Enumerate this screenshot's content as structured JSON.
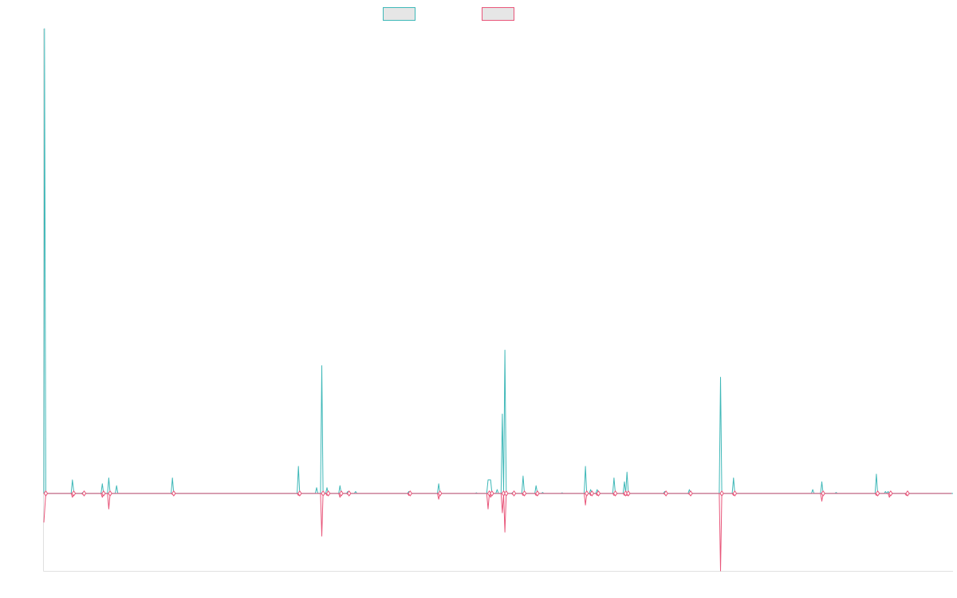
{
  "chart_data": {
    "type": "line",
    "title": "",
    "xlabel": "",
    "ylabel": "",
    "grid": false,
    "legend_position": "top-center",
    "xlim": [
      0,
      700
    ],
    "ylim": [
      -40,
      240
    ],
    "baseline": 0,
    "series": [
      {
        "color": "#3fb8b8",
        "marker": "none",
        "points": [
          [
            0,
            0
          ],
          [
            0.5,
            240
          ],
          [
            1.5,
            0
          ],
          [
            21,
            0
          ],
          [
            22,
            7
          ],
          [
            23,
            1
          ],
          [
            24,
            0
          ],
          [
            29,
            0
          ],
          [
            30,
            0.5
          ],
          [
            31,
            0
          ],
          [
            44,
            0
          ],
          [
            45,
            5
          ],
          [
            46,
            0
          ],
          [
            49,
            0
          ],
          [
            50,
            8
          ],
          [
            51,
            0
          ],
          [
            55,
            0
          ],
          [
            56,
            4
          ],
          [
            57,
            0
          ],
          [
            98,
            0
          ],
          [
            99,
            8
          ],
          [
            100,
            0
          ],
          [
            195,
            0
          ],
          [
            196,
            14
          ],
          [
            197,
            0
          ],
          [
            209,
            0
          ],
          [
            210,
            3
          ],
          [
            211,
            0
          ],
          [
            213,
            0
          ],
          [
            214,
            66
          ],
          [
            215,
            0
          ],
          [
            217,
            0
          ],
          [
            218,
            3
          ],
          [
            219,
            0
          ],
          [
            227,
            0
          ],
          [
            228,
            4
          ],
          [
            229,
            0
          ],
          [
            233,
            0
          ],
          [
            234,
            1
          ],
          [
            235,
            0
          ],
          [
            239,
            0
          ],
          [
            240,
            1
          ],
          [
            241,
            0
          ],
          [
            280,
            0
          ],
          [
            281,
            1
          ],
          [
            282,
            0
          ],
          [
            303,
            0
          ],
          [
            304,
            5
          ],
          [
            305,
            0
          ],
          [
            332,
            0
          ],
          [
            333,
            0.3
          ],
          [
            334,
            0
          ],
          [
            341,
            0
          ],
          [
            342,
            7
          ],
          [
            344,
            7
          ],
          [
            345,
            0
          ],
          [
            348,
            0
          ],
          [
            349,
            2
          ],
          [
            350,
            0
          ],
          [
            352,
            0
          ],
          [
            353,
            41
          ],
          [
            354,
            0
          ],
          [
            355,
            74
          ],
          [
            356,
            0
          ],
          [
            360,
            0
          ],
          [
            361,
            0.5
          ],
          [
            362,
            0
          ],
          [
            368,
            0
          ],
          [
            369,
            9
          ],
          [
            370,
            0
          ],
          [
            378,
            0
          ],
          [
            379,
            4
          ],
          [
            380,
            0
          ],
          [
            383,
            0
          ],
          [
            384,
            0.5
          ],
          [
            385,
            0
          ],
          [
            398,
            0
          ],
          [
            399,
            0.3
          ],
          [
            400,
            0
          ],
          [
            416,
            0
          ],
          [
            417,
            14
          ],
          [
            418,
            0
          ],
          [
            420,
            0
          ],
          [
            421,
            2
          ],
          [
            422,
            0
          ],
          [
            425,
            0
          ],
          [
            426,
            2
          ],
          [
            427,
            0
          ],
          [
            438,
            0
          ],
          [
            439,
            8
          ],
          [
            440,
            0
          ],
          [
            446,
            0
          ],
          [
            447,
            6
          ],
          [
            448,
            0
          ],
          [
            449,
            11
          ],
          [
            450,
            0
          ],
          [
            477,
            0
          ],
          [
            478,
            1
          ],
          [
            479,
            0
          ],
          [
            496,
            0
          ],
          [
            497,
            2
          ],
          [
            498,
            0
          ],
          [
            520,
            0
          ],
          [
            521,
            60
          ],
          [
            522,
            0
          ],
          [
            530,
            0
          ],
          [
            531,
            8
          ],
          [
            532,
            0
          ],
          [
            591,
            0
          ],
          [
            592,
            2
          ],
          [
            593,
            0
          ],
          [
            598,
            0
          ],
          [
            599,
            6
          ],
          [
            600,
            0
          ],
          [
            609,
            0
          ],
          [
            610,
            0.5
          ],
          [
            611,
            0
          ],
          [
            640,
            0
          ],
          [
            641,
            10
          ],
          [
            642,
            0
          ],
          [
            647,
            0
          ],
          [
            648,
            1
          ],
          [
            649,
            0
          ],
          [
            650,
            1
          ],
          [
            651,
            0
          ],
          [
            699,
            0
          ]
        ]
      },
      {
        "color": "#e8567a",
        "marker": "diamond",
        "points": [
          [
            0,
            -15
          ],
          [
            1.5,
            0
          ],
          [
            21,
            0
          ],
          [
            22,
            -2
          ],
          [
            23,
            0
          ],
          [
            29,
            0
          ],
          [
            30,
            -0.5
          ],
          [
            31,
            0
          ],
          [
            44,
            0
          ],
          [
            45,
            -2
          ],
          [
            46,
            0
          ],
          [
            49,
            0
          ],
          [
            50,
            -8
          ],
          [
            51,
            0
          ],
          [
            98,
            0
          ],
          [
            99,
            -0.5
          ],
          [
            100,
            0
          ],
          [
            195,
            0
          ],
          [
            196,
            -1
          ],
          [
            197,
            0
          ],
          [
            213,
            0
          ],
          [
            214,
            -22
          ],
          [
            215,
            0
          ],
          [
            217,
            0
          ],
          [
            218,
            -1
          ],
          [
            219,
            0
          ],
          [
            227,
            0
          ],
          [
            228,
            -2
          ],
          [
            229,
            0
          ],
          [
            233,
            0
          ],
          [
            234,
            -0.5
          ],
          [
            235,
            0
          ],
          [
            280,
            0
          ],
          [
            281,
            -1
          ],
          [
            282,
            0
          ],
          [
            303,
            0
          ],
          [
            304,
            -3
          ],
          [
            305,
            0
          ],
          [
            341,
            0
          ],
          [
            342,
            -8
          ],
          [
            343,
            0
          ],
          [
            344,
            -2
          ],
          [
            345,
            0
          ],
          [
            352,
            0
          ],
          [
            353,
            -10
          ],
          [
            354,
            0
          ],
          [
            355,
            -20
          ],
          [
            356,
            0
          ],
          [
            360,
            0
          ],
          [
            361,
            -0.5
          ],
          [
            362,
            0
          ],
          [
            368,
            0
          ],
          [
            369,
            -1
          ],
          [
            370,
            0
          ],
          [
            378,
            0
          ],
          [
            379,
            -1
          ],
          [
            380,
            0
          ],
          [
            416,
            0
          ],
          [
            417,
            -6
          ],
          [
            418,
            0
          ],
          [
            420,
            0
          ],
          [
            421,
            -1
          ],
          [
            422,
            0
          ],
          [
            425,
            0
          ],
          [
            426,
            -1
          ],
          [
            427,
            0
          ],
          [
            438,
            0
          ],
          [
            439,
            -1
          ],
          [
            440,
            0
          ],
          [
            446,
            0
          ],
          [
            447,
            -1
          ],
          [
            448,
            0
          ],
          [
            449,
            -1
          ],
          [
            450,
            0
          ],
          [
            477,
            0
          ],
          [
            478,
            -0.5
          ],
          [
            479,
            0
          ],
          [
            496,
            0
          ],
          [
            497,
            -0.5
          ],
          [
            498,
            0
          ],
          [
            520,
            0
          ],
          [
            521,
            -40
          ],
          [
            522,
            0
          ],
          [
            530,
            0
          ],
          [
            531,
            -1
          ],
          [
            532,
            0
          ],
          [
            598,
            0
          ],
          [
            599,
            -4
          ],
          [
            600,
            0
          ],
          [
            640,
            0
          ],
          [
            641,
            -1
          ],
          [
            642,
            0
          ],
          [
            650,
            0
          ],
          [
            651,
            -2
          ],
          [
            652,
            0
          ],
          [
            663,
            0
          ],
          [
            664,
            -1
          ],
          [
            665,
            0
          ],
          [
            699,
            0
          ]
        ]
      }
    ]
  }
}
